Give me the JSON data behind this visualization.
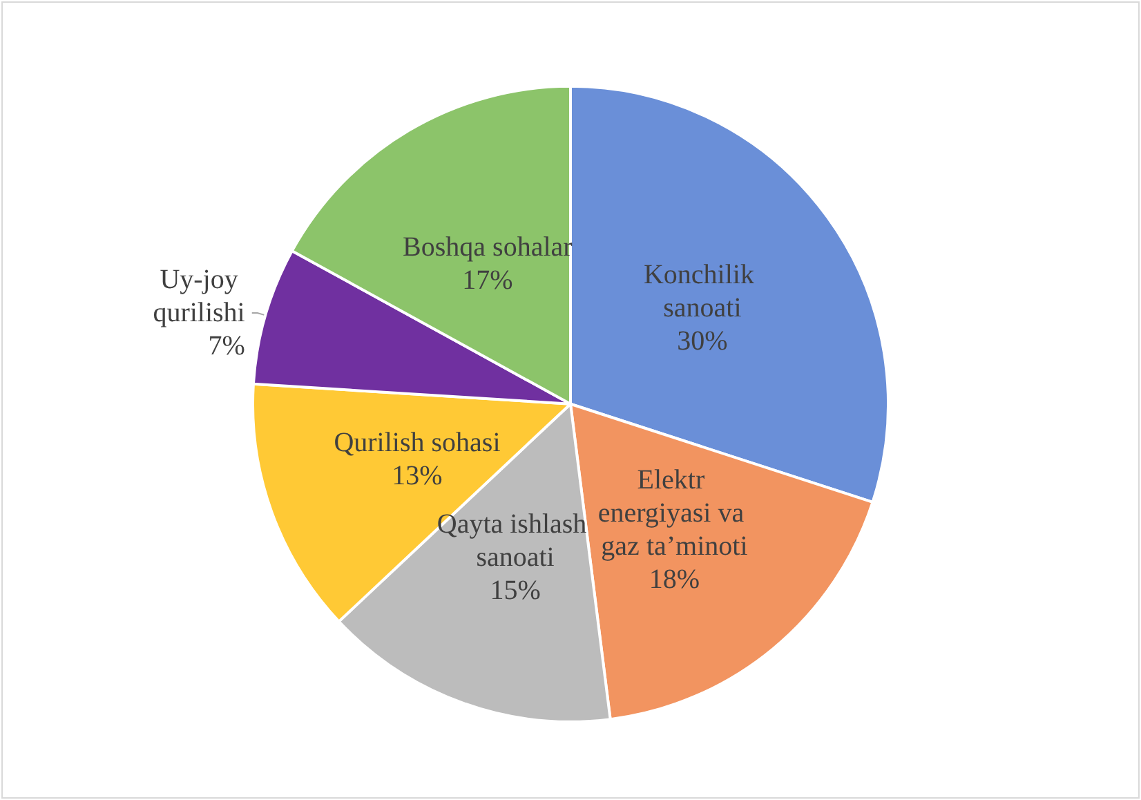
{
  "chart_data": {
    "type": "pie",
    "categories": [
      "Konchilik sanoati",
      "Elektr energiyasi va gaz ta’minoti",
      "Qayta ishlash sanoati",
      "Qurilish sohasi",
      "Uy-joy qurilishi",
      "Boshqa sohalar"
    ],
    "values": [
      30,
      18,
      15,
      13,
      7,
      17
    ],
    "colors": [
      "#6a8fd8",
      "#f29460",
      "#bcbcbc",
      "#ffc935",
      "#7030a0",
      "#8cc46a"
    ],
    "value_labels": [
      "30%",
      "18%",
      "15%",
      "13%",
      "7%",
      "17%"
    ],
    "legend": false
  }
}
